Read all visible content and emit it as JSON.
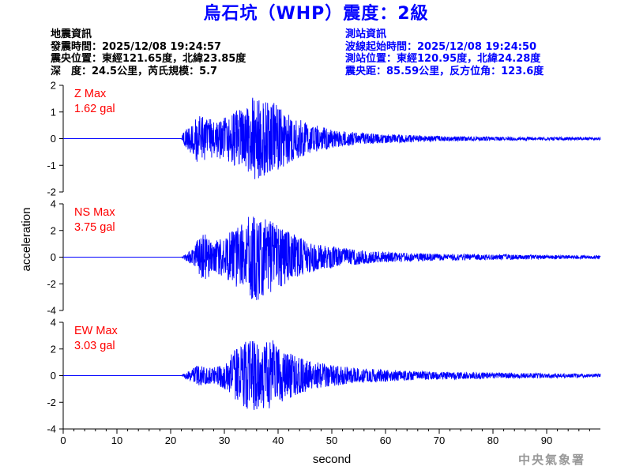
{
  "header": {
    "title": "烏石坑（WHP）震度：2級",
    "quake_info": {
      "heading": "地震資訊",
      "origin_time": "發震時間：2025/12/08 19:24:57",
      "epicenter": "震央位置：東經121.65度，北緯23.85度",
      "depth_magnitude": "深　度：24.5公里，芮氏規模：5.7"
    },
    "station_info": {
      "heading": "測站資訊",
      "wave_start": "波線起始時間：2025/12/08 19:24:50",
      "station_location": "測站位置：東經120.95度，北緯24.28度",
      "distance_azimuth": "震央距：85.59公里，反方位角：123.6度"
    }
  },
  "footer": {
    "agency": "中央氣象署"
  },
  "colors": {
    "title": "#0000ff",
    "station_info": "#0000ff",
    "trace": "#0000ff",
    "max_label": "#ff0000",
    "agency": "#999999"
  },
  "chart_data": {
    "type": "line",
    "xlabel": "second",
    "ylabel": "acceleration",
    "xlim": [
      0,
      100
    ],
    "xticks": [
      0,
      10,
      20,
      30,
      40,
      50,
      60,
      70,
      80,
      90
    ],
    "panels": [
      {
        "component": "Z",
        "max_label": "Z Max",
        "max_value": "1.62 gal",
        "ylim": [
          -2,
          2
        ],
        "yticks": [
          -2,
          -1,
          0,
          1,
          2
        ],
        "envelope": [
          [
            0,
            0
          ],
          [
            22.0,
            0
          ],
          [
            22.5,
            0.35
          ],
          [
            24,
            0.6
          ],
          [
            25,
            0.9
          ],
          [
            27,
            0.75
          ],
          [
            28,
            0.7
          ],
          [
            30,
            0.8
          ],
          [
            32,
            1.05
          ],
          [
            34,
            1.2
          ],
          [
            35.5,
            1.62
          ],
          [
            37,
            1.4
          ],
          [
            39,
            1.4
          ],
          [
            41,
            1.1
          ],
          [
            43,
            0.8
          ],
          [
            46,
            0.55
          ],
          [
            50,
            0.35
          ],
          [
            55,
            0.22
          ],
          [
            60,
            0.17
          ],
          [
            70,
            0.1
          ],
          [
            80,
            0.07
          ],
          [
            90,
            0.06
          ],
          [
            100,
            0.05
          ]
        ]
      },
      {
        "component": "NS",
        "max_label": "NS Max",
        "max_value": "3.75 gal",
        "ylim": [
          -4,
          4
        ],
        "yticks": [
          -4,
          -2,
          0,
          2,
          4
        ],
        "envelope": [
          [
            0,
            0
          ],
          [
            22.0,
            0
          ],
          [
            22.5,
            0.15
          ],
          [
            24,
            0.6
          ],
          [
            25,
            1.3
          ],
          [
            26.5,
            1.9
          ],
          [
            28,
            1.2
          ],
          [
            30,
            1.5
          ],
          [
            32,
            2.2
          ],
          [
            34,
            2.6
          ],
          [
            35.2,
            3.75
          ],
          [
            37,
            3.0
          ],
          [
            39,
            2.6
          ],
          [
            41,
            2.1
          ],
          [
            44,
            1.5
          ],
          [
            47,
            1.0
          ],
          [
            50,
            0.8
          ],
          [
            55,
            0.55
          ],
          [
            60,
            0.4
          ],
          [
            65,
            0.3
          ],
          [
            70,
            0.25
          ],
          [
            80,
            0.2
          ],
          [
            90,
            0.15
          ],
          [
            100,
            0.12
          ]
        ]
      },
      {
        "component": "EW",
        "max_label": "EW Max",
        "max_value": "3.03 gal",
        "ylim": [
          -4,
          4
        ],
        "yticks": [
          -4,
          -2,
          0,
          2,
          4
        ],
        "envelope": [
          [
            0,
            0
          ],
          [
            22.0,
            0
          ],
          [
            22.5,
            0.15
          ],
          [
            24,
            0.5
          ],
          [
            25,
            0.8
          ],
          [
            26.5,
            0.7
          ],
          [
            28,
            0.6
          ],
          [
            30,
            1.0
          ],
          [
            32,
            2.0
          ],
          [
            34,
            2.6
          ],
          [
            35.5,
            2.8
          ],
          [
            37,
            2.3
          ],
          [
            38.5,
            3.03
          ],
          [
            40,
            2.2
          ],
          [
            43,
            1.5
          ],
          [
            46,
            1.1
          ],
          [
            50,
            0.8
          ],
          [
            55,
            0.55
          ],
          [
            60,
            0.45
          ],
          [
            65,
            0.35
          ],
          [
            70,
            0.3
          ],
          [
            80,
            0.22
          ],
          [
            90,
            0.17
          ],
          [
            100,
            0.12
          ]
        ]
      }
    ]
  }
}
